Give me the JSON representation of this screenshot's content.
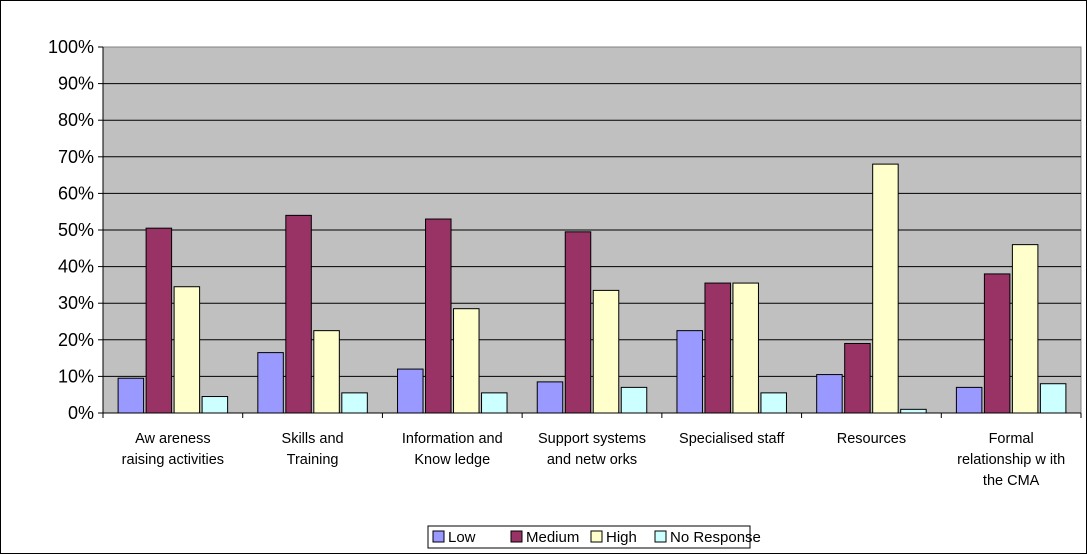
{
  "chart_data": {
    "type": "bar",
    "categories": [
      [
        "Aw areness",
        "raising activities"
      ],
      [
        "Skills and",
        "Training"
      ],
      [
        "Information and",
        "Know ledge"
      ],
      [
        "Support systems",
        "and netw orks"
      ],
      [
        "Specialised staff"
      ],
      [
        "Resources"
      ],
      [
        "Formal",
        "relationship w ith",
        "the CMA"
      ]
    ],
    "series": [
      {
        "name": "Low",
        "color": "#9999ff",
        "values": [
          9.5,
          16.5,
          12,
          8.5,
          22.5,
          10.5,
          7
        ]
      },
      {
        "name": "Medium",
        "color": "#993366",
        "values": [
          50.5,
          54,
          53,
          49.5,
          35.5,
          19,
          38
        ]
      },
      {
        "name": "High",
        "color": "#ffffcc",
        "values": [
          34.5,
          22.5,
          28.5,
          33.5,
          35.5,
          68,
          46
        ]
      },
      {
        "name": "No Response",
        "color": "#ccffff",
        "values": [
          4.5,
          5.5,
          5.5,
          7,
          5.5,
          1,
          8
        ]
      }
    ],
    "ylim": [
      0,
      100
    ],
    "yticks": [
      "0%",
      "10%",
      "20%",
      "30%",
      "40%",
      "50%",
      "60%",
      "70%",
      "80%",
      "90%",
      "100%"
    ],
    "plot_background": "#c0c0c0",
    "grid": true,
    "legend_position": "bottom"
  }
}
